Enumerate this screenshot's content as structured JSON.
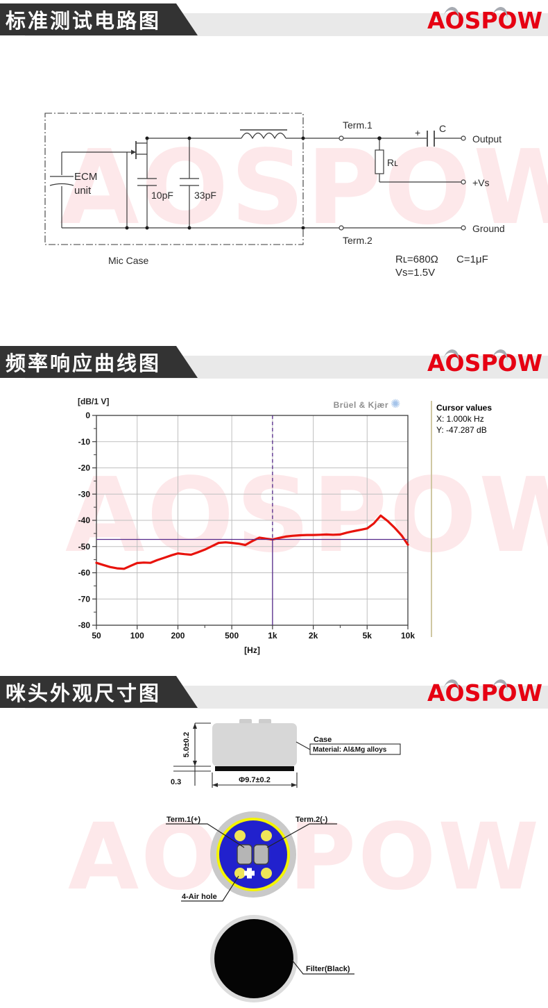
{
  "brand": {
    "logo_text": "AOSPOW",
    "logo_red": "#e60012",
    "logo_gray": "#a7abb2"
  },
  "watermark": {
    "text": "AOSPOW",
    "color": "rgba(230,0,18,0.09)"
  },
  "headers": {
    "h1": "标准测试电路图",
    "h2": "频率响应曲线图",
    "h3": "咪头外观尺寸图"
  },
  "circuit": {
    "ecm_line1": "ECM",
    "ecm_line2": "unit",
    "cap1": "10pF",
    "cap2": "33pF",
    "mic_case": "Mic Case",
    "term1": "Term.1",
    "term2": "Term.2",
    "output": "Output",
    "vs": "+Vs",
    "ground": "Ground",
    "rl_label": "Rʟ",
    "c_label": "C",
    "c_plus": "+",
    "rl_value": "Rʟ=680Ω",
    "c_value": "C=1μF",
    "vs_value": "Vs=1.5V"
  },
  "chart_data": {
    "type": "line",
    "y_unit_label": "[dB/1 V]",
    "x_axis_label": "[Hz]",
    "vendor_logo": "Brüel & Kjær",
    "xlim": [
      50,
      10000
    ],
    "ylim": [
      -80,
      0
    ],
    "grid": true,
    "x_ticks": [
      {
        "f": 50,
        "label": "50"
      },
      {
        "f": 100,
        "label": "100"
      },
      {
        "f": 200,
        "label": "200"
      },
      {
        "f": 500,
        "label": "500"
      },
      {
        "f": 1000,
        "label": "1k"
      },
      {
        "f": 2000,
        "label": "2k"
      },
      {
        "f": 5000,
        "label": "5k"
      },
      {
        "f": 10000,
        "label": "10k"
      }
    ],
    "x_minor_ticks": [
      316,
      3162
    ],
    "grid_freqs": [
      100,
      200,
      500,
      1000,
      2000,
      5000
    ],
    "y_tick_step": 10,
    "y_minor_step": 5,
    "series": [
      {
        "name": "frequency-response",
        "color": "#e8130c",
        "points": [
          [
            50,
            -56.2
          ],
          [
            56,
            -57.0
          ],
          [
            63,
            -57.8
          ],
          [
            71,
            -58.3
          ],
          [
            80,
            -58.5
          ],
          [
            90,
            -57.3
          ],
          [
            100,
            -56.3
          ],
          [
            112,
            -56.1
          ],
          [
            125,
            -56.2
          ],
          [
            140,
            -55.2
          ],
          [
            160,
            -54.2
          ],
          [
            180,
            -53.3
          ],
          [
            200,
            -52.6
          ],
          [
            224,
            -52.9
          ],
          [
            250,
            -53.1
          ],
          [
            280,
            -52.2
          ],
          [
            315,
            -51.2
          ],
          [
            355,
            -49.9
          ],
          [
            400,
            -48.6
          ],
          [
            450,
            -48.4
          ],
          [
            500,
            -48.6
          ],
          [
            560,
            -48.9
          ],
          [
            630,
            -49.4
          ],
          [
            710,
            -47.9
          ],
          [
            800,
            -46.6
          ],
          [
            900,
            -47.0
          ],
          [
            1000,
            -47.3
          ],
          [
            1120,
            -46.7
          ],
          [
            1250,
            -46.2
          ],
          [
            1400,
            -45.9
          ],
          [
            1600,
            -45.7
          ],
          [
            1800,
            -45.6
          ],
          [
            2000,
            -45.6
          ],
          [
            2240,
            -45.5
          ],
          [
            2500,
            -45.4
          ],
          [
            2800,
            -45.5
          ],
          [
            3150,
            -45.4
          ],
          [
            3550,
            -44.7
          ],
          [
            4000,
            -44.1
          ],
          [
            4500,
            -43.6
          ],
          [
            5000,
            -43.1
          ],
          [
            5600,
            -41.2
          ],
          [
            6300,
            -38.2
          ],
          [
            7100,
            -40.3
          ],
          [
            8000,
            -42.9
          ],
          [
            9000,
            -45.8
          ],
          [
            10000,
            -49.3
          ]
        ]
      }
    ],
    "cursor": {
      "x_hz": 1000,
      "y_db": -47.287,
      "color": "#55288a",
      "panel_title": "Cursor values",
      "x_text": "X: 1.000k Hz",
      "y_text": "Y: -47.287 dB"
    }
  },
  "icons": {
    "bk_logo_icon": "✺"
  },
  "dims": {
    "height_dim": "5.0±0.2",
    "strip_dim": "0.3",
    "dia_dim": "Φ9.7±0.2",
    "case_label": "Case",
    "case_material": "Material: Al&Mg alloys",
    "term1": "Term.1(+)",
    "term2": "Term.2(-)",
    "air_hole": "4-Air hole",
    "filter": "Filter(Black)"
  }
}
